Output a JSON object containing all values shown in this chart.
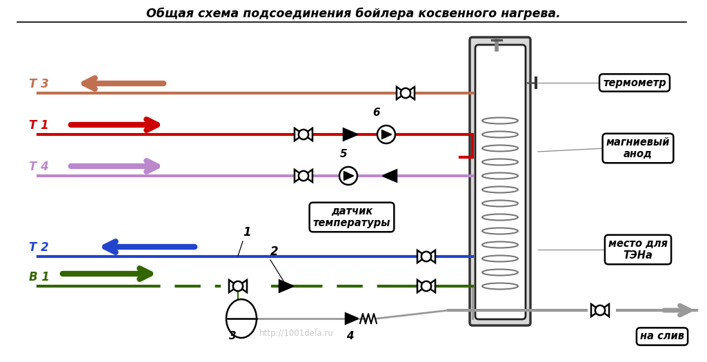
{
  "title": "Общая схема подсоединения бойлера косвенного нагрева.",
  "bg_color": "#ffffff",
  "col_T3": "#c07050",
  "col_T1": "#cc0000",
  "col_T4": "#bb88cc",
  "col_T2": "#2244cc",
  "col_B1": "#336600",
  "col_gray": "#999999",
  "lbl_T3": "Т 3",
  "lbl_T1": "Т 1",
  "lbl_T4": "Т 4",
  "lbl_T2": "Т 2",
  "lbl_B1": "В 1",
  "lbl_termometr": "термометр",
  "lbl_anode": "магниевый\nанод",
  "lbl_mesto": "место для\nТЭНа",
  "lbl_sliv": "на слив",
  "lbl_datchik": "датчик\nтемпературы",
  "lbl_1": "1",
  "lbl_2": "2",
  "lbl_3": "3",
  "lbl_4": "4",
  "lbl_5": "5",
  "lbl_6": "6",
  "watermark": "http://1001dela.ru"
}
